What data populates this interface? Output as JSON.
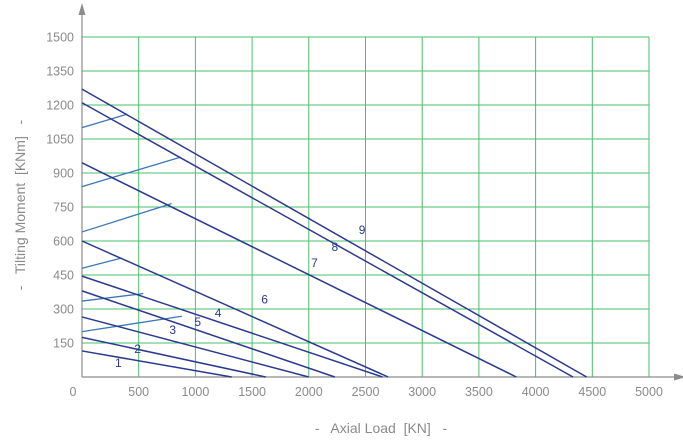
{
  "chart_data": {
    "type": "line",
    "xlabel": "-   Axial Load  [KN]   -",
    "ylabel": "-   Tilting Moment  [KNm]   -",
    "xlim": [
      0,
      5000
    ],
    "ylim": [
      0,
      1500
    ],
    "x_ticks": [
      0,
      500,
      1000,
      1500,
      2000,
      2500,
      3000,
      3500,
      4000,
      4500,
      5000
    ],
    "y_ticks": [
      150,
      300,
      450,
      600,
      750,
      900,
      1050,
      1200,
      1350,
      1500
    ],
    "x_tick_labels": [
      "0",
      "500",
      "1000",
      "1500",
      "2000",
      "2500",
      "3000",
      "3500",
      "4000",
      "4500",
      "5000"
    ],
    "y_tick_labels": [
      "150",
      "300",
      "450",
      "600",
      "750",
      "900",
      "1050",
      "1200",
      "1350",
      "1500"
    ],
    "grid": true,
    "colors": {
      "grid": "#49c06b",
      "series": "#2b3a8f",
      "secondary": "#3b78b8",
      "axis": "#8c8c8c",
      "text": "#8a8a8a"
    },
    "series": [
      {
        "name": "1",
        "points": [
          [
            0,
            115
          ],
          [
            1320,
            0
          ]
        ],
        "label_at": [
          320,
          45
        ]
      },
      {
        "name": "2",
        "points": [
          [
            0,
            175
          ],
          [
            1620,
            0
          ]
        ],
        "label_at": [
          490,
          105
        ]
      },
      {
        "name": "3",
        "points": [
          [
            0,
            265
          ],
          [
            2000,
            0
          ]
        ],
        "label_at": [
          800,
          190
        ]
      },
      {
        "name": "4",
        "points": [
          [
            0,
            380
          ],
          [
            2230,
            0
          ]
        ],
        "label_at": [
          1200,
          265
        ]
      },
      {
        "name": "5",
        "points": [
          [
            0,
            445
          ],
          [
            2650,
            0
          ]
        ],
        "label_at": [
          1020,
          225
        ]
      },
      {
        "name": "6",
        "points": [
          [
            0,
            600
          ],
          [
            2700,
            0
          ]
        ],
        "label_at": [
          1610,
          325
        ]
      },
      {
        "name": "7",
        "points": [
          [
            0,
            945
          ],
          [
            3830,
            0
          ]
        ],
        "label_at": [
          2050,
          485
        ]
      },
      {
        "name": "8",
        "points": [
          [
            0,
            1210
          ],
          [
            4330,
            0
          ]
        ],
        "label_at": [
          2230,
          555
        ]
      },
      {
        "name": "9",
        "points": [
          [
            0,
            1270
          ],
          [
            4450,
            0
          ]
        ],
        "label_at": [
          2470,
          630
        ]
      }
    ],
    "secondary_lines": [
      {
        "points": [
          [
            0,
            200
          ],
          [
            880,
            268
          ]
        ]
      },
      {
        "points": [
          [
            0,
            335
          ],
          [
            540,
            368
          ]
        ]
      },
      {
        "points": [
          [
            0,
            480
          ],
          [
            350,
            525
          ]
        ]
      },
      {
        "points": [
          [
            0,
            640
          ],
          [
            790,
            765
          ]
        ]
      },
      {
        "points": [
          [
            0,
            840
          ],
          [
            870,
            970
          ]
        ]
      },
      {
        "points": [
          [
            0,
            1100
          ],
          [
            400,
            1160
          ]
        ]
      }
    ]
  }
}
